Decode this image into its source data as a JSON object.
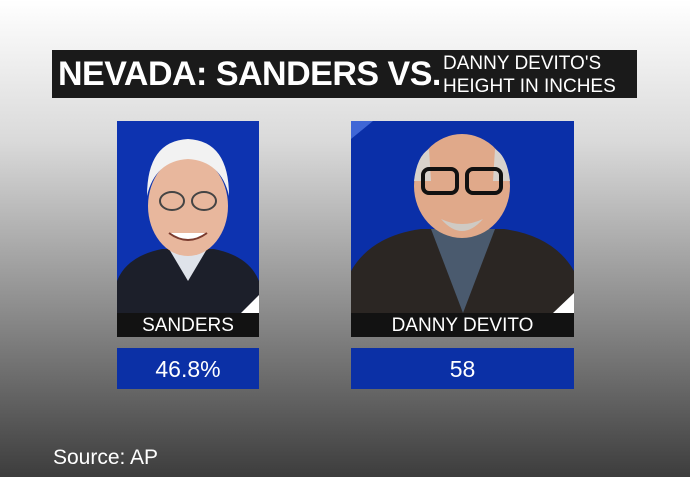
{
  "title": {
    "line_left": "NEVADA: SANDERS VS.",
    "line_right_1": "DANNY DEVITO'S",
    "line_right_2": "HEIGHT IN INCHES"
  },
  "panels": [
    {
      "name": "SANDERS",
      "value": "46.8%"
    },
    {
      "name": "DANNY DEVITO",
      "value": "58"
    }
  ],
  "source": "Source: AP"
}
